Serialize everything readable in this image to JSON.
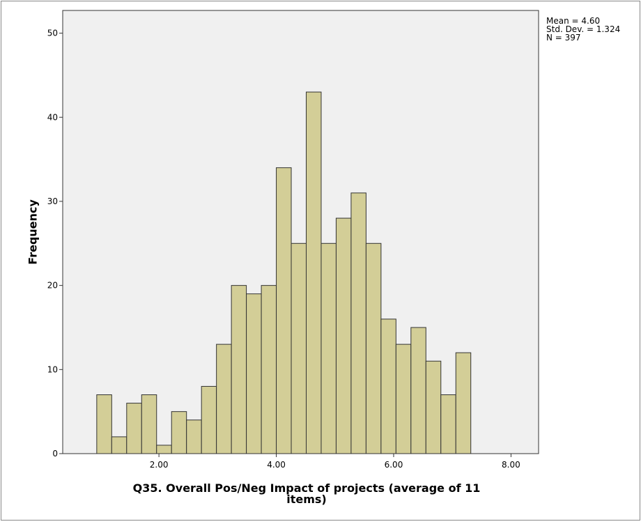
{
  "chart_data": {
    "type": "histogram",
    "xlabel": [
      "Q35. Overall Pos/Neg Impact of projects (average of 11",
      "items)"
    ],
    "ylabel": "Frequency",
    "annotations": [
      "Mean = 4.60",
      "Std. Dev. = 1.324",
      "N = 397"
    ],
    "bins": [
      0.94,
      1.195,
      1.45,
      1.705,
      1.96,
      2.215,
      2.47,
      2.725,
      2.98,
      3.235,
      3.49,
      3.745,
      4.0,
      4.255,
      4.51,
      4.765,
      5.02,
      5.275,
      5.53,
      5.785,
      6.04,
      6.295,
      6.55,
      6.805,
      7.06,
      7.315
    ],
    "values": [
      7,
      2,
      6,
      7,
      1,
      5,
      4,
      8,
      13,
      20,
      19,
      20,
      34,
      25,
      43,
      25,
      28,
      31,
      25,
      16,
      13,
      15,
      11,
      7,
      12
    ],
    "color": "#d3ce97",
    "xlim": [
      0.36,
      8.47
    ],
    "xticks": [
      {
        "value": 2,
        "label": "2.00"
      },
      {
        "value": 4,
        "label": "4.00"
      },
      {
        "value": 6,
        "label": "6.00"
      },
      {
        "value": 8,
        "label": "8.00"
      }
    ],
    "ylim": [
      0,
      52.7
    ],
    "yticks": [
      0,
      10,
      20,
      30,
      40,
      50
    ],
    "grid": false
  }
}
